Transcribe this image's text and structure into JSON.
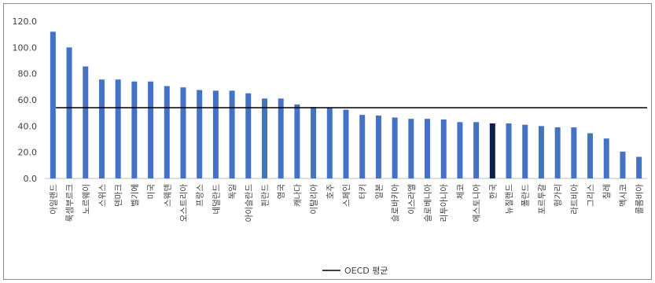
{
  "chart_data": {
    "type": "bar",
    "categories": [
      "아일랜드",
      "룩셈부르크",
      "노르웨이",
      "스위스",
      "덴마크",
      "벨기에",
      "미국",
      "스웨덴",
      "오스트리아",
      "프랑스",
      "네덜란드",
      "독일",
      "아이슬란드",
      "핀란드",
      "영국",
      "캐나다",
      "이탈리아",
      "호주",
      "스페인",
      "터키",
      "일본",
      "슬로바키아",
      "이스라엘",
      "슬로베니아",
      "리투아니아",
      "체코",
      "에스토니아",
      "한국",
      "뉴질랜드",
      "폴란드",
      "포르투갈",
      "헝가리",
      "라트비아",
      "그리스",
      "칠레",
      "멕시코",
      "콜롬비아"
    ],
    "values": [
      112,
      100,
      85.5,
      75.5,
      75.5,
      74,
      74,
      70.5,
      69.5,
      67.5,
      67,
      67,
      65,
      61,
      61,
      56.5,
      54.5,
      54,
      52.5,
      48.5,
      48,
      46.5,
      45.5,
      45.5,
      45,
      43,
      43,
      42,
      42,
      41,
      40,
      39,
      39,
      34.5,
      30.5,
      20.5,
      16.5
    ],
    "highlight_category": "한국",
    "bar_color": "#4472c4",
    "highlight_color": "#0d1f4a",
    "reference_line": {
      "value": 54,
      "label": "OECD 평균",
      "color": "#000000"
    },
    "ylim": [
      0,
      120
    ],
    "yticks": [
      "0.0",
      "20.0",
      "40.0",
      "60.0",
      "80.0",
      "100.0",
      "120.0"
    ],
    "grid": false,
    "legend_position": "bottom-center",
    "title": "",
    "xlabel": "",
    "ylabel": ""
  }
}
